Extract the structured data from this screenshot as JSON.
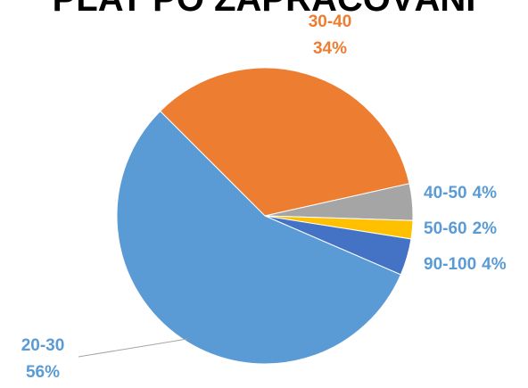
{
  "chart_data": {
    "type": "pie",
    "title": "PLAT PO ZAPRACOVÁNÍ",
    "categories": [
      "30-40",
      "40-50",
      "50-60",
      "90-100",
      "20-30"
    ],
    "values": [
      34,
      4,
      2,
      4,
      56
    ],
    "value_labels": [
      "34%",
      "4%",
      "2%",
      "4%",
      "56%"
    ],
    "colors": [
      "#ed7d31",
      "#a5a5a5",
      "#ffc000",
      "#4472c4",
      "#5b9bd5"
    ]
  }
}
